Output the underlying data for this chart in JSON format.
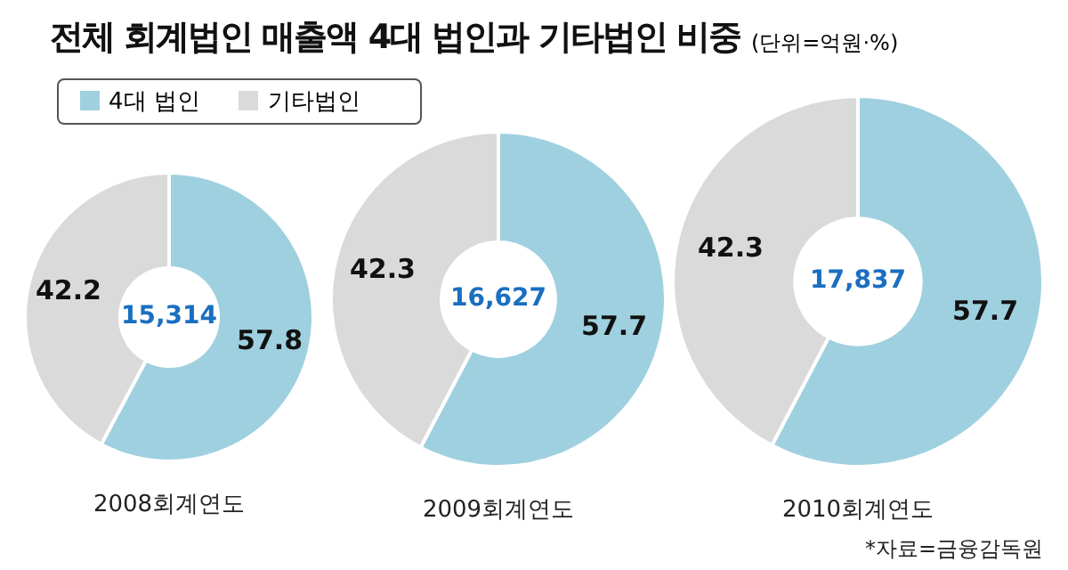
{
  "chart_data": [
    {
      "type": "donut",
      "title": "전체 회계법인 매출액 4대 법인과 기타법인 비중",
      "xlabel": "2008회계연도",
      "categories": [
        "4대 법인",
        "기타법인"
      ],
      "values": [
        57.8,
        42.2
      ],
      "colors": [
        "#9fd0df",
        "#dadada"
      ],
      "data_labels": true,
      "legend": "top right",
      "annotations": [
        "15,314"
      ]
    },
    {
      "type": "donut",
      "xlabel": "2009회계연도",
      "categories": [
        null,
        null
      ],
      "values": [
        57.7,
        42.3
      ],
      "colors": [
        "#9fd0df",
        "#dadada"
      ],
      "data_labels": true,
      "annotations": [
        "16,627"
      ]
    },
    {
      "type": "donut",
      "subtitle": "(단위=억원·%)",
      "xlabel": "2010회계연도",
      "categories": [
        null,
        null
      ],
      "values": [
        57.7,
        42.3
      ],
      "colors": [
        "#9fd0df",
        "#dadada"
      ],
      "data_labels": true,
      "annotations": [
        "17,837",
        "*자료=금융감독원"
      ]
    }
  ]
}
